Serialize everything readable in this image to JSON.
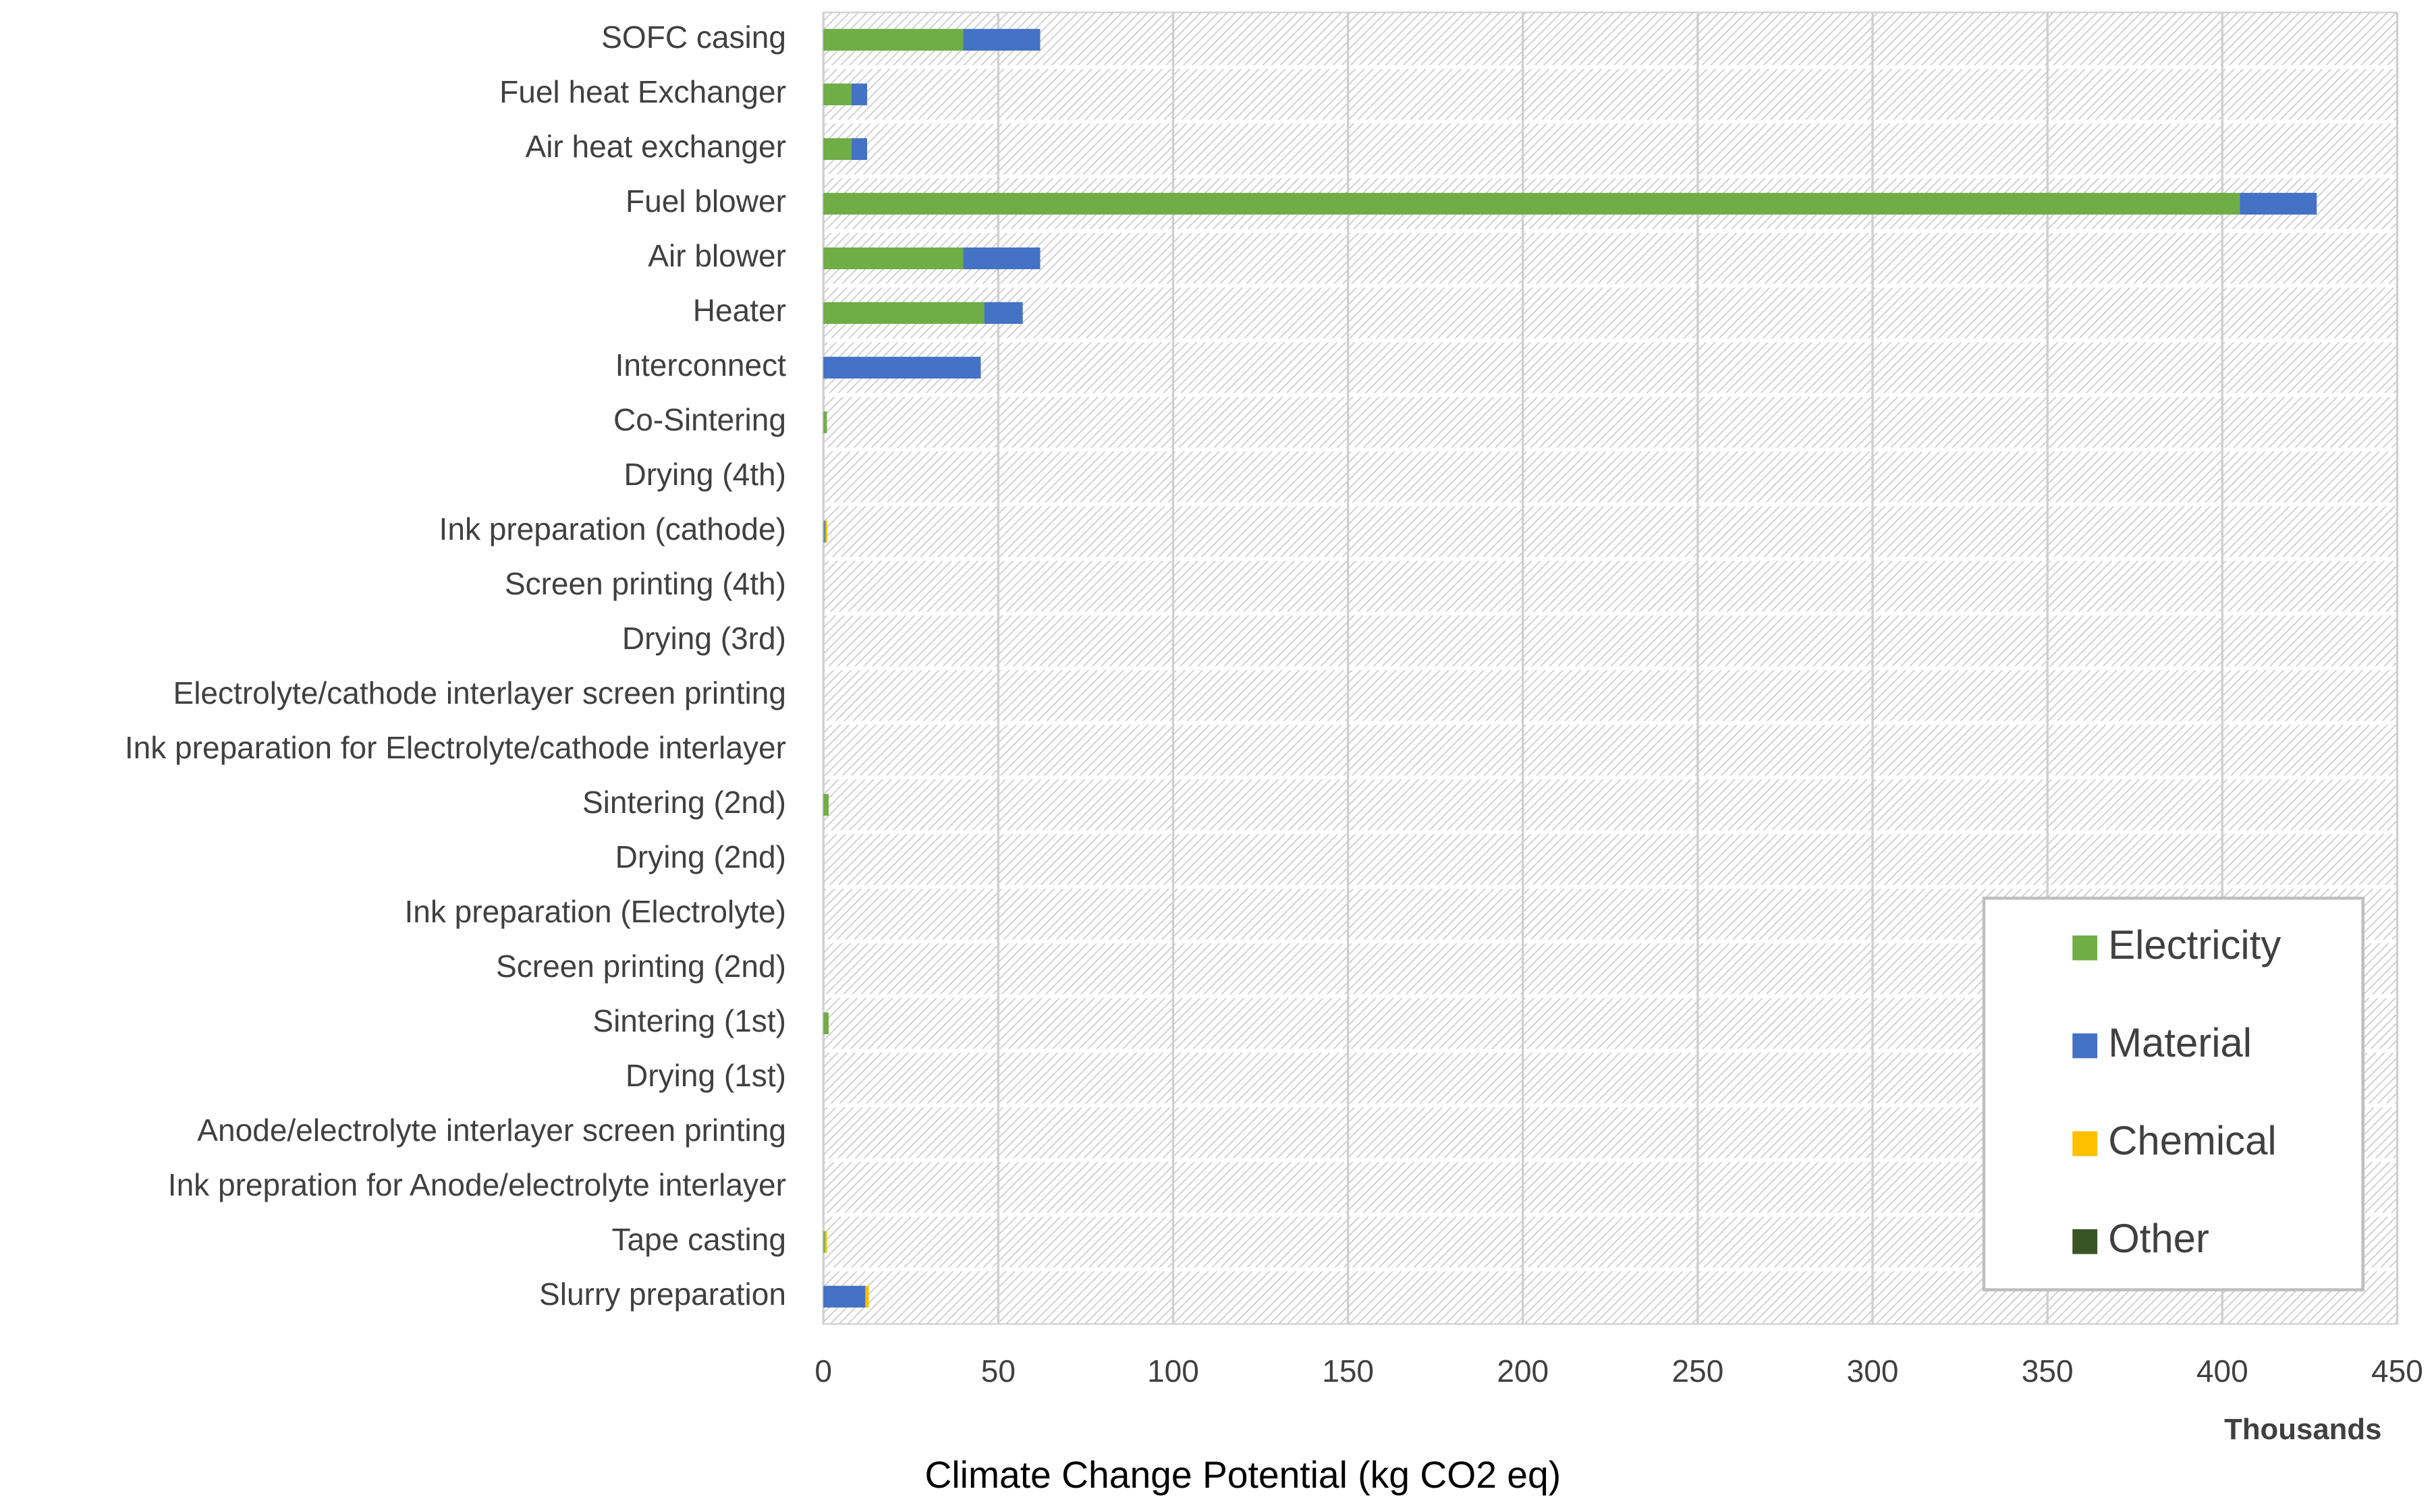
{
  "chart_data": {
    "type": "stacked-bar-horizontal",
    "x_axis_title": "Climate Change Potential (kg CO2 eq)",
    "x_unit_label": "Thousands",
    "categories": [
      "SOFC casing",
      "Fuel heat Exchanger",
      "Air heat exchanger",
      "Fuel blower",
      "Air blower",
      "Heater",
      "Interconnect",
      "Co-Sintering",
      "Drying (4th)",
      "Ink preparation (cathode)",
      "Screen printing (4th)",
      "Drying (3rd)",
      "Electrolyte/cathode interlayer screen printing",
      "Ink preparation for Electrolyte/cathode interlayer",
      "Sintering (2nd)",
      "Drying (2nd)",
      "Ink preparation (Electrolyte)",
      "Screen printing (2nd)",
      "Sintering (1st)",
      "Drying (1st)",
      "Anode/electrolyte interlayer screen printing",
      "Ink prepration for Anode/electrolyte interlayer",
      "Tape casting",
      "Slurry preparation"
    ],
    "series": [
      {
        "name": "Electricity",
        "color": "#70ad47",
        "values": [
          40,
          8,
          8,
          405,
          40,
          46,
          0,
          1,
          0,
          0.3,
          0,
          0,
          0,
          0,
          1.5,
          0,
          0,
          0,
          1.5,
          0,
          0,
          0,
          0.5,
          0
        ]
      },
      {
        "name": "Material",
        "color": "#4472c4",
        "values": [
          22,
          4.5,
          4.5,
          22,
          22,
          11,
          45,
          0,
          0,
          0.3,
          0,
          0,
          0,
          0,
          0,
          0,
          0,
          0,
          0,
          0,
          0,
          0,
          0,
          12
        ]
      },
      {
        "name": "Chemical",
        "color": "#ffc000",
        "values": [
          0,
          0,
          0,
          0,
          0,
          0,
          0,
          0,
          0,
          0.5,
          0,
          0,
          0,
          0,
          0,
          0,
          0,
          0,
          0,
          0,
          0,
          0,
          0.5,
          1
        ]
      },
      {
        "name": "Other",
        "color": "#375623",
        "values": [
          0,
          0,
          0,
          0,
          0,
          0,
          0,
          0,
          0,
          0,
          0,
          0,
          0,
          0,
          0,
          0,
          0,
          0,
          0,
          0,
          0,
          0,
          0,
          0
        ]
      }
    ],
    "xlim": [
      0,
      450
    ],
    "xticks": [
      0,
      50,
      100,
      150,
      200,
      250,
      300,
      350,
      400,
      450
    ],
    "grid": true,
    "legend_position": "lower-right"
  }
}
